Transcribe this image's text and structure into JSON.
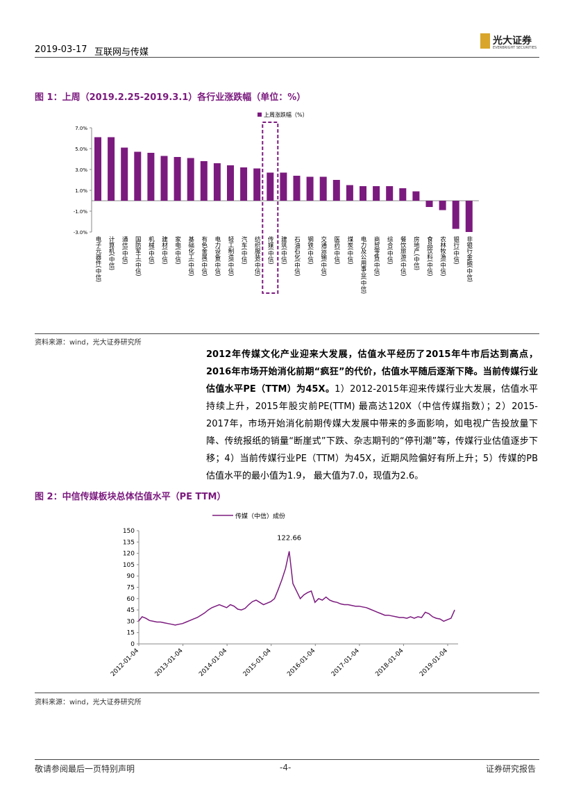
{
  "header": {
    "date": "2019-03-17",
    "section": "互联网与传媒",
    "logo": "光大证券",
    "logo_en": "EVERBRIGHT SECURITIES"
  },
  "source_1": "资料来源：wind，光大证券研究所",
  "paragraph": {
    "bold": "2012年传媒文化产业迎来大发展，估值水平经历了2015年牛市后达到高点，2016年市场开始消化前期“疯狂”的代价，估值水平随后逐渐下降。当前传媒行业估值水平PE（TTM）为45X。",
    "text": "1）2012-2015年迎来传媒行业大发展，估值水平持续上升，2015年股灾前PE(TTM) 最高达120X（中信传媒指数）；2）2015-2017年，市场开始消化前期传媒大发展中带来的多面影响，如电视广告投放量下降、传统报纸的销量“断崖式”下跌、杂志期刊的“停刊潮”等，传媒行业估值逐步下移；4）当前传媒行业PE（TTM）为45X，近期风险偏好有所上升；5）传媒的PB估值水平的最小值为1.9， 最大值为7.0，现值为2.6。"
  },
  "source_2": "资料来源：wind，光大证券研究所",
  "footer": {
    "left": "敬请参阅最后一页特别声明",
    "page": "-4-",
    "right": "证券研究报告"
  },
  "chart_data": [
    {
      "type": "bar",
      "title": "图 1：上周（2019.2.25-2019.3.1）各行业涨跌幅（单位：%）",
      "legend": "上周涨跌幅（%）",
      "color": "#7b1a7e",
      "categories": [
        "电子元器件(中信)",
        "计算机(中信)",
        "通信(中信)",
        "国防军工(中信)",
        "机械(中信)",
        "建材(中信)",
        "家电(中信)",
        "基础化工(中信)",
        "有色金属(中信)",
        "电力设备(中信)",
        "轻工制造(中信)",
        "汽车(中信)",
        "纺织服装(中信)",
        "传媒(中信)",
        "建筑(中信)",
        "石油石化(中信)",
        "钢铁(中信)",
        "交通运输(中信)",
        "医药(中信)",
        "煤炭(中信)",
        "电力及公用事业(中信)",
        "商贸零售(中信)",
        "综合(中信)",
        "餐饮旅游(中信)",
        "房地产(中信)",
        "食品饮料(中信)",
        "农林牧渔(中信)",
        "银行(中信)",
        "非银行金融(中信)"
      ],
      "values": [
        6.1,
        6.1,
        5.1,
        4.7,
        4.6,
        4.3,
        4.2,
        4.1,
        3.8,
        3.6,
        3.4,
        3.2,
        3.1,
        2.7,
        2.7,
        2.4,
        2.3,
        2.3,
        2.0,
        1.5,
        1.4,
        1.4,
        1.4,
        1.2,
        0.9,
        -0.6,
        -0.9,
        -2.7,
        -3.0
      ],
      "highlight": 13,
      "ylim": [
        -3,
        7
      ],
      "yticks": [
        {
          "value": 7,
          "label": "7.0%"
        },
        {
          "value": 5,
          "label": "5.0%"
        },
        {
          "value": 3,
          "label": "3.0%"
        },
        {
          "value": 1,
          "label": "1.0%"
        },
        {
          "value": -1,
          "label": "-1.0%"
        },
        {
          "value": -3,
          "label": "-3.0%"
        }
      ]
    },
    {
      "type": "line",
      "title": "图 2：中信传媒板块总体估值水平（PE TTM）",
      "legend": "传媒（中信）成份",
      "color": "#7b1a7e",
      "annotation": "122.66",
      "x": [
        "2012-01",
        "2012-02",
        "2012-03",
        "2012-04",
        "2012-05",
        "2012-06",
        "2012-07",
        "2012-08",
        "2012-09",
        "2012-10",
        "2012-11",
        "2012-12",
        "2013-01",
        "2013-02",
        "2013-03",
        "2013-04",
        "2013-05",
        "2013-06",
        "2013-07",
        "2013-08",
        "2013-09",
        "2013-10",
        "2013-11",
        "2013-12",
        "2014-01",
        "2014-02",
        "2014-03",
        "2014-04",
        "2014-05",
        "2014-06",
        "2014-07",
        "2014-08",
        "2014-09",
        "2014-10",
        "2014-11",
        "2014-12",
        "2015-01",
        "2015-02",
        "2015-03",
        "2015-04",
        "2015-05",
        "2015-06",
        "2015-07",
        "2015-08",
        "2015-09",
        "2015-10",
        "2015-11",
        "2015-12",
        "2016-01",
        "2016-02",
        "2016-03",
        "2016-04",
        "2016-05",
        "2016-06",
        "2016-07",
        "2016-08",
        "2016-09",
        "2016-10",
        "2016-11",
        "2016-12",
        "2017-01",
        "2017-02",
        "2017-03",
        "2017-04",
        "2017-05",
        "2017-06",
        "2017-07",
        "2017-08",
        "2017-09",
        "2017-10",
        "2017-11",
        "2017-12",
        "2018-01",
        "2018-02",
        "2018-03",
        "2018-04",
        "2018-05",
        "2018-06",
        "2018-07",
        "2018-08",
        "2018-09",
        "2018-10",
        "2018-11",
        "2018-12",
        "2019-01",
        "2019-02",
        "2019-03"
      ],
      "values": [
        30,
        36,
        34,
        31,
        30,
        29,
        29,
        28,
        27,
        26,
        25,
        26,
        27,
        29,
        31,
        33,
        35,
        38,
        41,
        45,
        48,
        50,
        52,
        50,
        48,
        52,
        50,
        46,
        45,
        47,
        52,
        56,
        58,
        55,
        52,
        54,
        56,
        60,
        72,
        85,
        100,
        122.66,
        80,
        70,
        60,
        65,
        68,
        70,
        55,
        60,
        58,
        62,
        58,
        56,
        55,
        53,
        52,
        52,
        51,
        50,
        50,
        49,
        48,
        46,
        44,
        42,
        40,
        38,
        38,
        37,
        36,
        35,
        35,
        34,
        36,
        34,
        36,
        35,
        42,
        40,
        36,
        34,
        33,
        30,
        32,
        34,
        45
      ],
      "ylim": [
        0,
        150
      ],
      "yticks": [
        0,
        15,
        30,
        45,
        60,
        75,
        90,
        105,
        120,
        135,
        150
      ],
      "xticks": [
        "2012-01-04",
        "2013-01-04",
        "2014-01-04",
        "2015-01-04",
        "2016-01-04",
        "2017-01-04",
        "2018-01-04",
        "2019-01-04"
      ]
    }
  ]
}
